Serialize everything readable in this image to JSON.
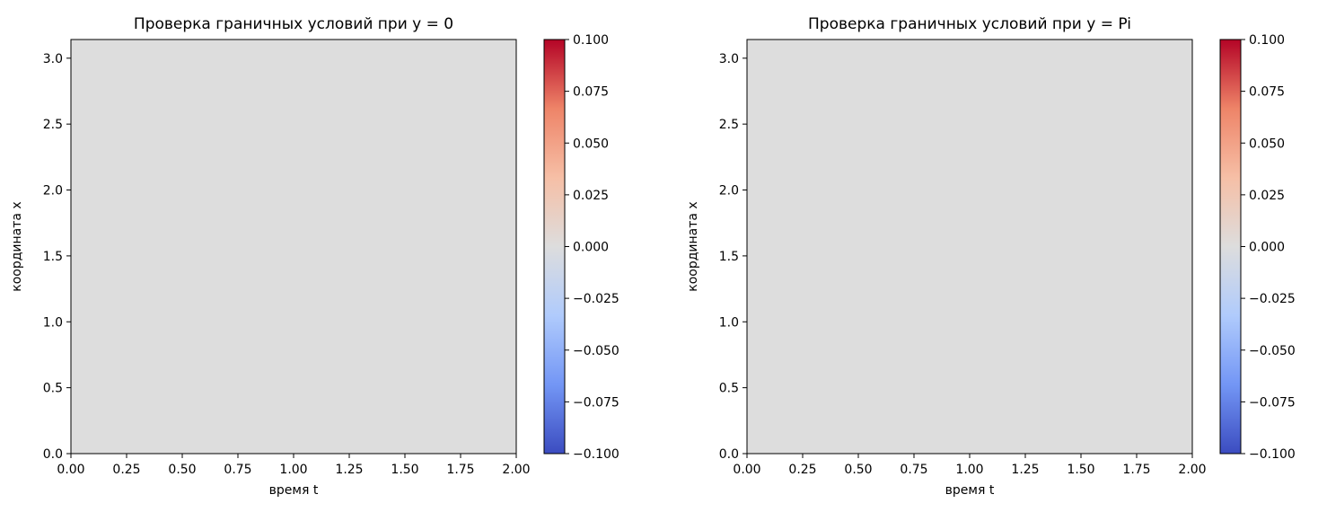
{
  "chart_data": [
    {
      "type": "heatmap",
      "title": "Проверка граничных условий при y = 0",
      "xlabel": "время t",
      "ylabel": "координата x",
      "xlim": [
        0,
        2
      ],
      "ylim": [
        0,
        3.14159
      ],
      "x_ticks": [
        "0.00",
        "0.25",
        "0.50",
        "0.75",
        "1.00",
        "1.25",
        "1.50",
        "1.75",
        "2.00"
      ],
      "y_ticks": [
        "0.0",
        "0.5",
        "1.0",
        "1.5",
        "2.0",
        "2.5",
        "3.0"
      ],
      "values": [
        [
          0.0
        ]
      ],
      "value_range": [
        -0.1,
        0.1
      ],
      "colormap": "coolwarm",
      "fill_color": "#dddddd",
      "colorbar_ticks": [
        "0.100",
        "0.075",
        "0.050",
        "0.025",
        "0.000",
        "−0.025",
        "−0.050",
        "−0.075",
        "−0.100"
      ],
      "grid": false
    },
    {
      "type": "heatmap",
      "title": "Проверка граничных условий при y = Pi",
      "xlabel": "время t",
      "ylabel": "координата x",
      "xlim": [
        0,
        2
      ],
      "ylim": [
        0,
        3.14159
      ],
      "x_ticks": [
        "0.00",
        "0.25",
        "0.50",
        "0.75",
        "1.00",
        "1.25",
        "1.50",
        "1.75",
        "2.00"
      ],
      "y_ticks": [
        "0.0",
        "0.5",
        "1.0",
        "1.5",
        "2.0",
        "2.5",
        "3.0"
      ],
      "values": [
        [
          0.0
        ]
      ],
      "value_range": [
        -0.1,
        0.1
      ],
      "colormap": "coolwarm",
      "fill_color": "#dddddd",
      "colorbar_ticks": [
        "0.100",
        "0.075",
        "0.050",
        "0.025",
        "0.000",
        "−0.025",
        "−0.050",
        "−0.075",
        "−0.100"
      ],
      "grid": false
    }
  ],
  "colors": {
    "colormap_stops": [
      "#3b4cc0",
      "#7396f5",
      "#b0cbfc",
      "#dddddd",
      "#f6bfa6",
      "#ee8468",
      "#b40426"
    ]
  }
}
